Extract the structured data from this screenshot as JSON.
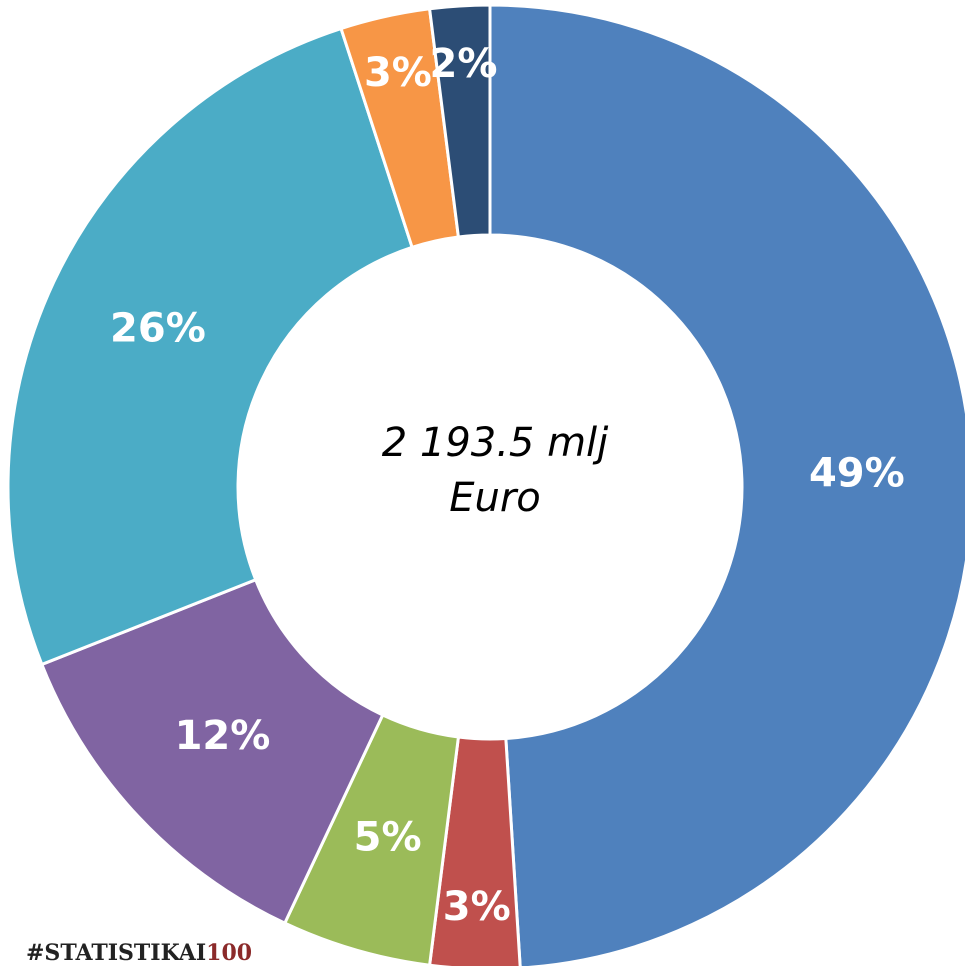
{
  "chart_data": {
    "type": "donut",
    "values": [
      49,
      3,
      5,
      12,
      26,
      3,
      2
    ],
    "value_labels": [
      "49%",
      "3%",
      "5%",
      "12%",
      "26%",
      "3%",
      "2%"
    ],
    "colors": [
      "#4f81bd",
      "#c0504d",
      "#9bbb59",
      "#8064a2",
      "#4bacc6",
      "#f79646",
      "#2c4d75"
    ],
    "center_label": [
      "2 193.5 mlj",
      "Euro"
    ],
    "watermark": [
      "#STATISTIKAI",
      "100"
    ]
  }
}
